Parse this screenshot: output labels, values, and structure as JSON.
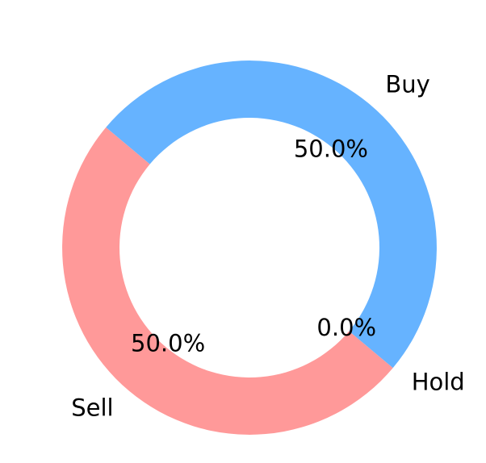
{
  "chart_data": {
    "type": "pie",
    "donut": true,
    "categories": [
      "Sell",
      "Hold",
      "Buy"
    ],
    "values": [
      50.0,
      0.0,
      50.0
    ],
    "percent_labels": [
      "50.0%",
      "0.0%",
      "50.0%"
    ],
    "colors": [
      "#ff9999",
      "#66b3ff",
      "#66b3ff"
    ],
    "title": "",
    "start_angle_deg": 140,
    "direction": "counterclockwise",
    "legend": false
  }
}
